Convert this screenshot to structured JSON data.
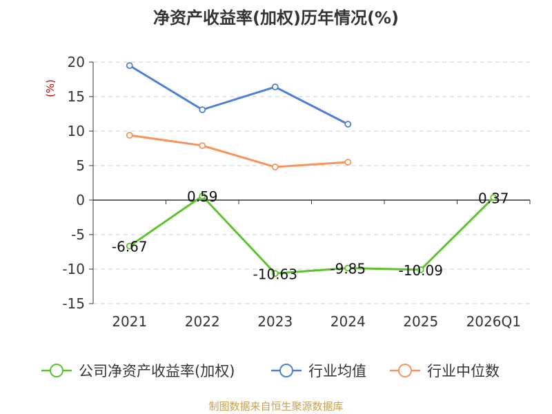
{
  "chart_data": {
    "type": "line",
    "title": "净资产收益率(加权)历年情况(%)",
    "ylabel": "(%)",
    "categories": [
      "2021",
      "2022",
      "2023",
      "2024",
      "2025",
      "2026Q1"
    ],
    "ylim": [
      -15,
      20
    ],
    "yticks": [
      20,
      15,
      10,
      5,
      0,
      -5,
      -10,
      -15
    ],
    "ytick_labels": [
      "20",
      "15",
      "10",
      "5",
      "0",
      "-5",
      "-10",
      "-15"
    ],
    "grid": true,
    "legend_position": "bottom",
    "series": [
      {
        "name": "公司净资产收益率(加权)",
        "color": "#5dc22b",
        "values": [
          -6.67,
          0.59,
          -10.63,
          -9.85,
          -10.09,
          0.37
        ],
        "labels": [
          "-6.67",
          "0.59",
          "-10.63",
          "-9.85",
          "-10.09",
          "0.37"
        ]
      },
      {
        "name": "行业均值",
        "color": "#4c7fd6",
        "values": [
          19.5,
          13.1,
          16.4,
          11.0,
          null,
          null
        ]
      },
      {
        "name": "行业中位数",
        "color": "#f7935c",
        "values": [
          9.4,
          7.9,
          4.8,
          5.5,
          null,
          null
        ]
      }
    ]
  },
  "source": "制图数据来自恒生聚源数据库"
}
